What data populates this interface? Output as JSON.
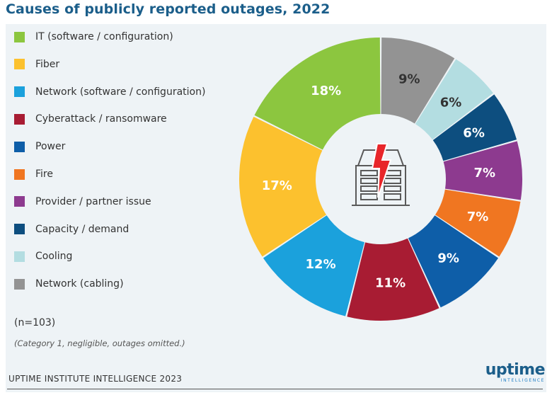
{
  "title": "Causes of publicly reported outages, 2022",
  "chart_data": {
    "type": "pie",
    "title": "Causes of publicly reported outages, 2022",
    "categories": [
      "IT (software / configuration)",
      "Fiber",
      "Network (software / configuration)",
      "Cyberattack / ransomware",
      "Power",
      "Fire",
      "Provider / partner issue",
      "Capacity / demand",
      "Cooling",
      "Network (cabling)"
    ],
    "values": [
      18,
      17,
      12,
      11,
      9,
      7,
      7,
      6,
      6,
      9
    ],
    "labels": [
      "18%",
      "17%",
      "12%",
      "11%",
      "9%",
      "7%",
      "7%",
      "6%",
      "6%",
      "9%"
    ],
    "colors": [
      "#8cc63f",
      "#fcc12e",
      "#1ba1dc",
      "#a81c33",
      "#0e5ea8",
      "#f07621",
      "#8d3a8f",
      "#0d4e7f",
      "#b3dde1",
      "#939393"
    ],
    "label_colors": [
      "#ffffff",
      "#ffffff",
      "#ffffff",
      "#ffffff",
      "#ffffff",
      "#ffffff",
      "#ffffff",
      "#ffffff",
      "#333333",
      "#333333"
    ],
    "legend_placement": "left",
    "hole": "donut"
  },
  "notes": {
    "sample": "(n=103)",
    "caveat": "(Category 1, negligible, outages omitted.)"
  },
  "footer": {
    "source": "UPTIME INSTITUTE INTELLIGENCE 2023"
  },
  "brand": {
    "name": "uptime",
    "tagline": "INTELLIGENCE"
  },
  "icon": {
    "center": "data-center-outage-icon",
    "bolt_color": "#e8262a"
  }
}
